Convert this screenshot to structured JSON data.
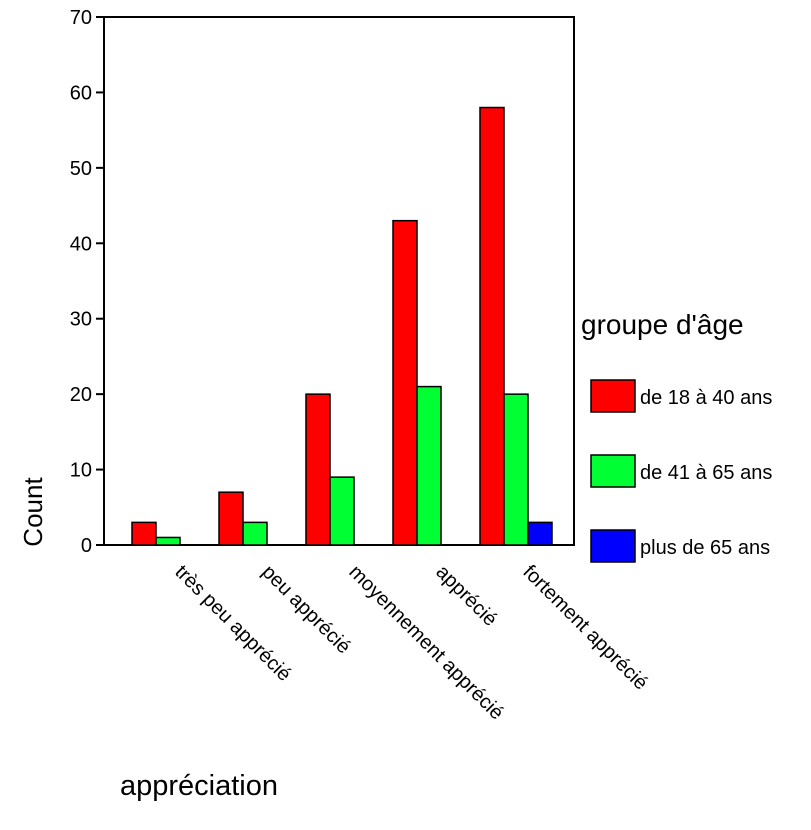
{
  "chart_data": {
    "type": "bar",
    "ylabel": "Count",
    "xlabel": "appréciation",
    "ylim": [
      0,
      70
    ],
    "yticks": [
      0,
      10,
      20,
      30,
      40,
      50,
      60,
      70
    ],
    "categories": [
      "très peu apprécié",
      "peu apprécié",
      "moyennement apprécié",
      "apprécié",
      "fortement apprécié"
    ],
    "legend": {
      "title": "groupe d'âge",
      "position": "right"
    },
    "series": [
      {
        "name": "de 18 à 40 ans",
        "color": "#ff0000",
        "values": [
          3,
          7,
          20,
          43,
          58
        ]
      },
      {
        "name": "de 41 à 65 ans",
        "color": "#00ff33",
        "values": [
          1,
          3,
          9,
          21,
          20
        ]
      },
      {
        "name": "plus de 65 ans",
        "color": "#0000ff",
        "values": [
          0,
          0,
          0,
          0,
          3
        ]
      }
    ]
  }
}
